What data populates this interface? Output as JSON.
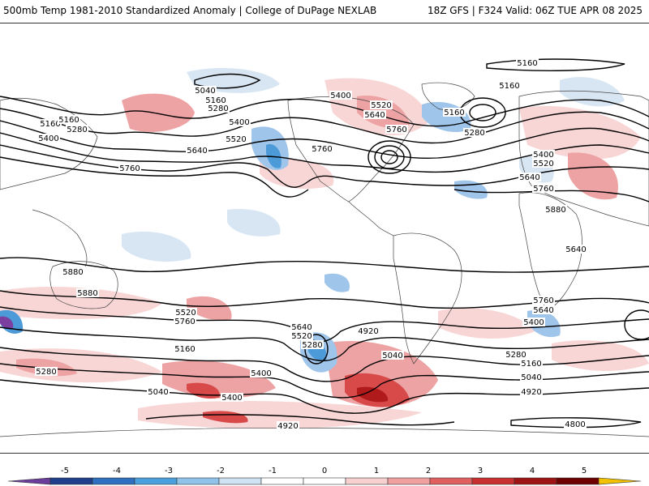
{
  "header": {
    "left": "500mb Temp 1981-2010 Standardized Anomaly | College of DuPage NEXLAB",
    "right": "18Z GFS | F324 Valid: 06Z TUE APR 08 2025"
  },
  "contour_labels": [
    "5160",
    "5040",
    "5160",
    "5280",
    "5160",
    "5280",
    "5400",
    "5400",
    "5520",
    "5640",
    "5760",
    "5400",
    "5520",
    "5640",
    "5760",
    "5160",
    "5160",
    "5280",
    "5400",
    "5520",
    "5640",
    "5760",
    "5880",
    "5880",
    "5880",
    "5760",
    "5640",
    "5520",
    "5760",
    "5640",
    "5520",
    "5280",
    "5160",
    "5400",
    "5280",
    "5040",
    "5400",
    "4920",
    "5040",
    "5760",
    "5640",
    "5400",
    "5280",
    "5160",
    "5040",
    "4920",
    "4920",
    "4800",
    "5160"
  ],
  "colorbar": {
    "ticks": [
      "-5",
      "-4",
      "-3",
      "-2",
      "-1",
      "0",
      "1",
      "2",
      "3",
      "4",
      "5"
    ],
    "colors": [
      "#6a3d9a",
      "#1f3f8c",
      "#2f6fc0",
      "#4aa0dc",
      "#8fc3ea",
      "#cfe2f3",
      "#ffffff",
      "#ffffff",
      "#f7d0d0",
      "#f0a0a0",
      "#e06060",
      "#c83030",
      "#9e1414",
      "#6e0000",
      "#f2c200"
    ]
  },
  "anomaly_colors": {
    "warm_light": "#f9d6d6",
    "warm_mid": "#eda3a3",
    "warm_strong": "#d84a4a",
    "warm_deep": "#b01a1a",
    "cold_light": "#d8e6f4",
    "cold_mid": "#9fc5ea",
    "cold_strong": "#4d9ad8",
    "cold_deep": "#7b3fa0"
  }
}
